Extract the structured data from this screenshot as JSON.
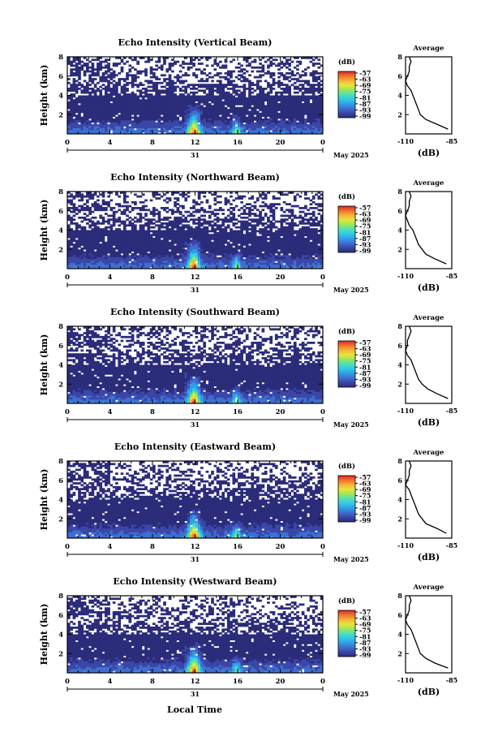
{
  "figure": {
    "footer_xlabel": "Local Time",
    "month_label": "May 2025",
    "colormap": [
      "#2b2c7a",
      "#3a46a8",
      "#3f6fd0",
      "#2fa0e6",
      "#33c9e6",
      "#4fe0b8",
      "#9be65a",
      "#e6e63a",
      "#f6b33a",
      "#f0732a",
      "#d9282a"
    ]
  },
  "chart_data": [
    {
      "type": "heatmap",
      "title": "Echo Intensity (Vertical Beam)",
      "ylabel": "Height (km)",
      "x_ticks": [
        "0",
        "4",
        "8",
        "12",
        "16",
        "20",
        "0"
      ],
      "x_values": [
        0,
        4,
        8,
        12,
        16,
        20,
        24
      ],
      "day_label": "31",
      "y_ticks": [
        "2",
        "4",
        "6",
        "8"
      ],
      "ylim": [
        0,
        8
      ],
      "xlim": [
        0,
        24
      ],
      "colorbar": {
        "label": "(dB)",
        "ticks": [
          "-57",
          "-63",
          "-69",
          "-75",
          "-81",
          "-87",
          "-93",
          "-99"
        ]
      },
      "average": {
        "title": "Average",
        "xlabel": "(dB)",
        "x_ticks": [
          "-110",
          "-85"
        ],
        "y_ticks": [
          "2",
          "4",
          "6",
          "8"
        ],
        "height_km": [
          0.5,
          1.0,
          1.5,
          2.0,
          2.5,
          3.0,
          3.5,
          4.0,
          4.5,
          5.0,
          5.5,
          6.0,
          6.5,
          7.0,
          7.5,
          8.0
        ],
        "db": [
          -87,
          -93,
          -99,
          -102,
          -103,
          -104,
          -105,
          -106,
          -107,
          -109,
          -110,
          -109,
          -108,
          -108,
          -107,
          -108
        ]
      }
    },
    {
      "type": "heatmap",
      "title": "Echo Intensity (Northward Beam)",
      "ylabel": "Height (km)",
      "x_ticks": [
        "0",
        "4",
        "8",
        "12",
        "16",
        "20",
        "0"
      ],
      "x_values": [
        0,
        4,
        8,
        12,
        16,
        20,
        24
      ],
      "day_label": "31",
      "y_ticks": [
        "2",
        "4",
        "6",
        "8"
      ],
      "ylim": [
        0,
        8
      ],
      "xlim": [
        0,
        24
      ],
      "colorbar": {
        "label": "(dB)",
        "ticks": [
          "-57",
          "-63",
          "-69",
          "-75",
          "-81",
          "-87",
          "-93",
          "-99"
        ]
      },
      "average": {
        "title": "Average",
        "xlabel": "(dB)",
        "x_ticks": [
          "-110",
          "-85"
        ],
        "y_ticks": [
          "2",
          "4",
          "6",
          "8"
        ],
        "height_km": [
          0.5,
          1.0,
          1.5,
          2.0,
          2.5,
          3.0,
          3.5,
          4.0,
          4.5,
          5.0,
          5.5,
          6.0,
          6.5,
          7.0,
          7.5,
          8.0
        ],
        "db": [
          -88,
          -94,
          -99,
          -101,
          -103,
          -104,
          -105,
          -106,
          -108,
          -109,
          -110,
          -109,
          -108,
          -108,
          -107,
          -108
        ]
      }
    },
    {
      "type": "heatmap",
      "title": "Echo Intensity (Southward Beam)",
      "ylabel": "Height (km)",
      "x_ticks": [
        "0",
        "4",
        "8",
        "12",
        "16",
        "20",
        "0"
      ],
      "x_values": [
        0,
        4,
        8,
        12,
        16,
        20,
        24
      ],
      "day_label": "31",
      "y_ticks": [
        "2",
        "4",
        "6",
        "8"
      ],
      "ylim": [
        0,
        8
      ],
      "xlim": [
        0,
        24
      ],
      "colorbar": {
        "label": "(dB)",
        "ticks": [
          "-57",
          "-63",
          "-69",
          "-75",
          "-81",
          "-87",
          "-93",
          "-99"
        ]
      },
      "average": {
        "title": "Average",
        "xlabel": "(dB)",
        "x_ticks": [
          "-110",
          "-85"
        ],
        "y_ticks": [
          "2",
          "4",
          "6",
          "8"
        ],
        "height_km": [
          0.5,
          1.0,
          1.5,
          2.0,
          2.5,
          3.0,
          3.5,
          4.0,
          4.5,
          5.0,
          5.5,
          6.0,
          6.5,
          7.0,
          7.5,
          8.0
        ],
        "db": [
          -87,
          -93,
          -98,
          -101,
          -103,
          -104,
          -105,
          -106,
          -107,
          -109,
          -110,
          -109,
          -109,
          -108,
          -107,
          -108
        ]
      }
    },
    {
      "type": "heatmap",
      "title": "Echo Intensity (Eastward Beam)",
      "ylabel": "Height (km)",
      "x_ticks": [
        "0",
        "4",
        "8",
        "12",
        "16",
        "20",
        "0"
      ],
      "x_values": [
        0,
        4,
        8,
        12,
        16,
        20,
        24
      ],
      "day_label": "31",
      "y_ticks": [
        "2",
        "4",
        "6",
        "8"
      ],
      "ylim": [
        0,
        8
      ],
      "xlim": [
        0,
        24
      ],
      "colorbar": {
        "label": "(dB)",
        "ticks": [
          "-57",
          "-63",
          "-69",
          "-75",
          "-81",
          "-87",
          "-93",
          "-99"
        ]
      },
      "average": {
        "title": "Average",
        "xlabel": "(dB)",
        "x_ticks": [
          "-110",
          "-85"
        ],
        "y_ticks": [
          "2",
          "4",
          "6",
          "8"
        ],
        "height_km": [
          0.5,
          1.0,
          1.5,
          2.0,
          2.5,
          3.0,
          3.5,
          4.0,
          4.5,
          5.0,
          5.5,
          6.0,
          6.5,
          7.0,
          7.5,
          8.0
        ],
        "db": [
          -88,
          -93,
          -99,
          -101,
          -103,
          -104,
          -105,
          -106,
          -107,
          -108,
          -110,
          -109,
          -108,
          -108,
          -107,
          -108
        ]
      }
    },
    {
      "type": "heatmap",
      "title": "Echo Intensity (Westward Beam)",
      "ylabel": "Height (km)",
      "x_ticks": [
        "0",
        "4",
        "8",
        "12",
        "16",
        "20",
        "0"
      ],
      "x_values": [
        0,
        4,
        8,
        12,
        16,
        20,
        24
      ],
      "day_label": "31",
      "y_ticks": [
        "2",
        "4",
        "6",
        "8"
      ],
      "ylim": [
        0,
        8
      ],
      "xlim": [
        0,
        24
      ],
      "colorbar": {
        "label": "(dB)",
        "ticks": [
          "-57",
          "-63",
          "-69",
          "-75",
          "-81",
          "-87",
          "-93",
          "-99"
        ]
      },
      "average": {
        "title": "Average",
        "xlabel": "(dB)",
        "x_ticks": [
          "-110",
          "-85"
        ],
        "y_ticks": [
          "2",
          "4",
          "6",
          "8"
        ],
        "height_km": [
          0.5,
          1.0,
          1.5,
          2.0,
          2.5,
          3.0,
          3.5,
          4.0,
          4.5,
          5.0,
          5.5,
          6.0,
          6.5,
          7.0,
          7.5,
          8.0
        ],
        "db": [
          -87,
          -94,
          -99,
          -102,
          -103,
          -104,
          -105,
          -106,
          -107,
          -109,
          -110,
          -109,
          -108,
          -108,
          -107,
          -108
        ]
      }
    }
  ]
}
